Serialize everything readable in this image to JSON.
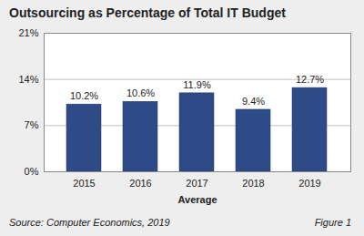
{
  "chart_data": {
    "type": "bar",
    "title": "Outsourcing as Percentage of Total IT Budget",
    "categories": [
      "2015",
      "2016",
      "2017",
      "2018",
      "2019"
    ],
    "values": [
      10.2,
      10.6,
      11.9,
      9.4,
      12.7
    ],
    "value_labels": [
      "10.2%",
      "10.6%",
      "11.9%",
      "9.4%",
      "12.7%"
    ],
    "data_labels": true,
    "color": "#2e4a87",
    "xlabel": "Average",
    "ylim": [
      0,
      21
    ],
    "yticks": [
      {
        "value": 0,
        "label": "0%"
      },
      {
        "value": 7,
        "label": "7%"
      },
      {
        "value": 14,
        "label": "14%"
      },
      {
        "value": 21,
        "label": "21%"
      }
    ],
    "grid": true,
    "source": "Source: Computer Economics, 2019",
    "figure_label": "Figure 1"
  }
}
